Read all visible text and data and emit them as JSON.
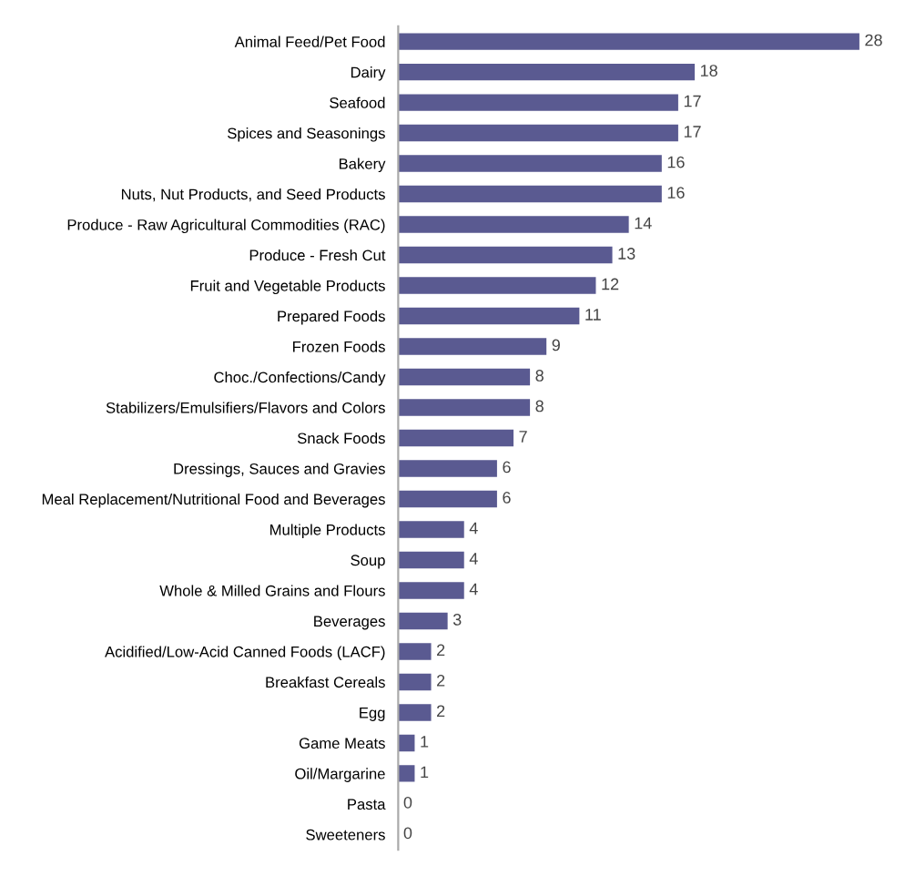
{
  "chart_data": {
    "type": "bar",
    "orientation": "horizontal",
    "data_labels": true,
    "grid": false,
    "legend": false,
    "categories": [
      "Animal Feed/Pet Food",
      "Dairy",
      "Seafood",
      "Spices and Seasonings",
      "Bakery",
      "Nuts, Nut Products, and Seed Products",
      "Produce - Raw Agricultural Commodities (RAC)",
      "Produce - Fresh Cut",
      "Fruit and Vegetable Products",
      "Prepared Foods",
      "Frozen Foods",
      "Choc./Confections/Candy",
      "Stabilizers/Emulsifiers/Flavors and Colors",
      "Snack Foods",
      "Dressings, Sauces and Gravies",
      "Meal Replacement/Nutritional Food and Beverages",
      "Multiple Products",
      "Soup",
      "Whole & Milled Grains and Flours",
      "Beverages",
      "Acidified/Low-Acid Canned Foods (LACF)",
      "Breakfast Cereals",
      "Egg",
      "Game Meats",
      "Oil/Margarine",
      "Pasta",
      "Sweeteners"
    ],
    "values": [
      28,
      18,
      17,
      17,
      16,
      16,
      14,
      13,
      12,
      11,
      9,
      8,
      8,
      7,
      6,
      6,
      4,
      4,
      4,
      3,
      2,
      2,
      2,
      1,
      1,
      0,
      0
    ],
    "color": "#5a5a91"
  }
}
